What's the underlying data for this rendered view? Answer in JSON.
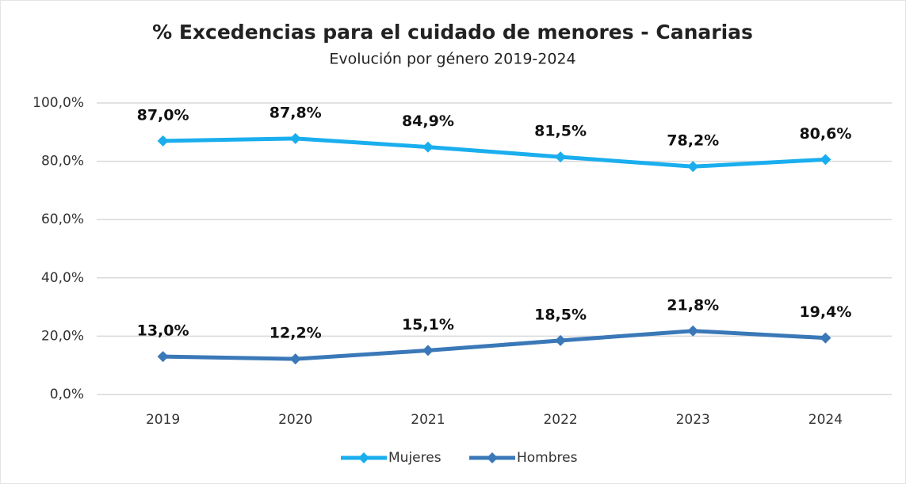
{
  "chart_data": {
    "type": "line",
    "title": "% Excedencias para el cuidado de menores - Canarias",
    "subtitle": "Evolución por género 2019-2024",
    "categories": [
      "2019",
      "2020",
      "2021",
      "2022",
      "2023",
      "2024"
    ],
    "series": [
      {
        "name": "Mujeres",
        "color": "#1aaeee",
        "values": [
          87.0,
          87.8,
          84.9,
          81.5,
          78.2,
          80.6
        ],
        "value_labels": [
          "87,0%",
          "87,8%",
          "84,9%",
          "81,5%",
          "78,2%",
          "80,6%"
        ]
      },
      {
        "name": "Hombres",
        "color": "#3a78b8",
        "values": [
          13.0,
          12.2,
          15.1,
          18.5,
          21.8,
          19.4
        ],
        "value_labels": [
          "13,0%",
          "12,2%",
          "15,1%",
          "18,5%",
          "21,8%",
          "19,4%"
        ]
      }
    ],
    "ylim": [
      0,
      100
    ],
    "yticks": [
      {
        "value": 0,
        "label": "0,0%"
      },
      {
        "value": 20,
        "label": "20,0%"
      },
      {
        "value": 40,
        "label": "40,0%"
      },
      {
        "value": 60,
        "label": "60,0%"
      },
      {
        "value": 80,
        "label": "80,0%"
      },
      {
        "value": 100,
        "label": "100,0%"
      }
    ],
    "grid": true,
    "legend": "bottom"
  }
}
